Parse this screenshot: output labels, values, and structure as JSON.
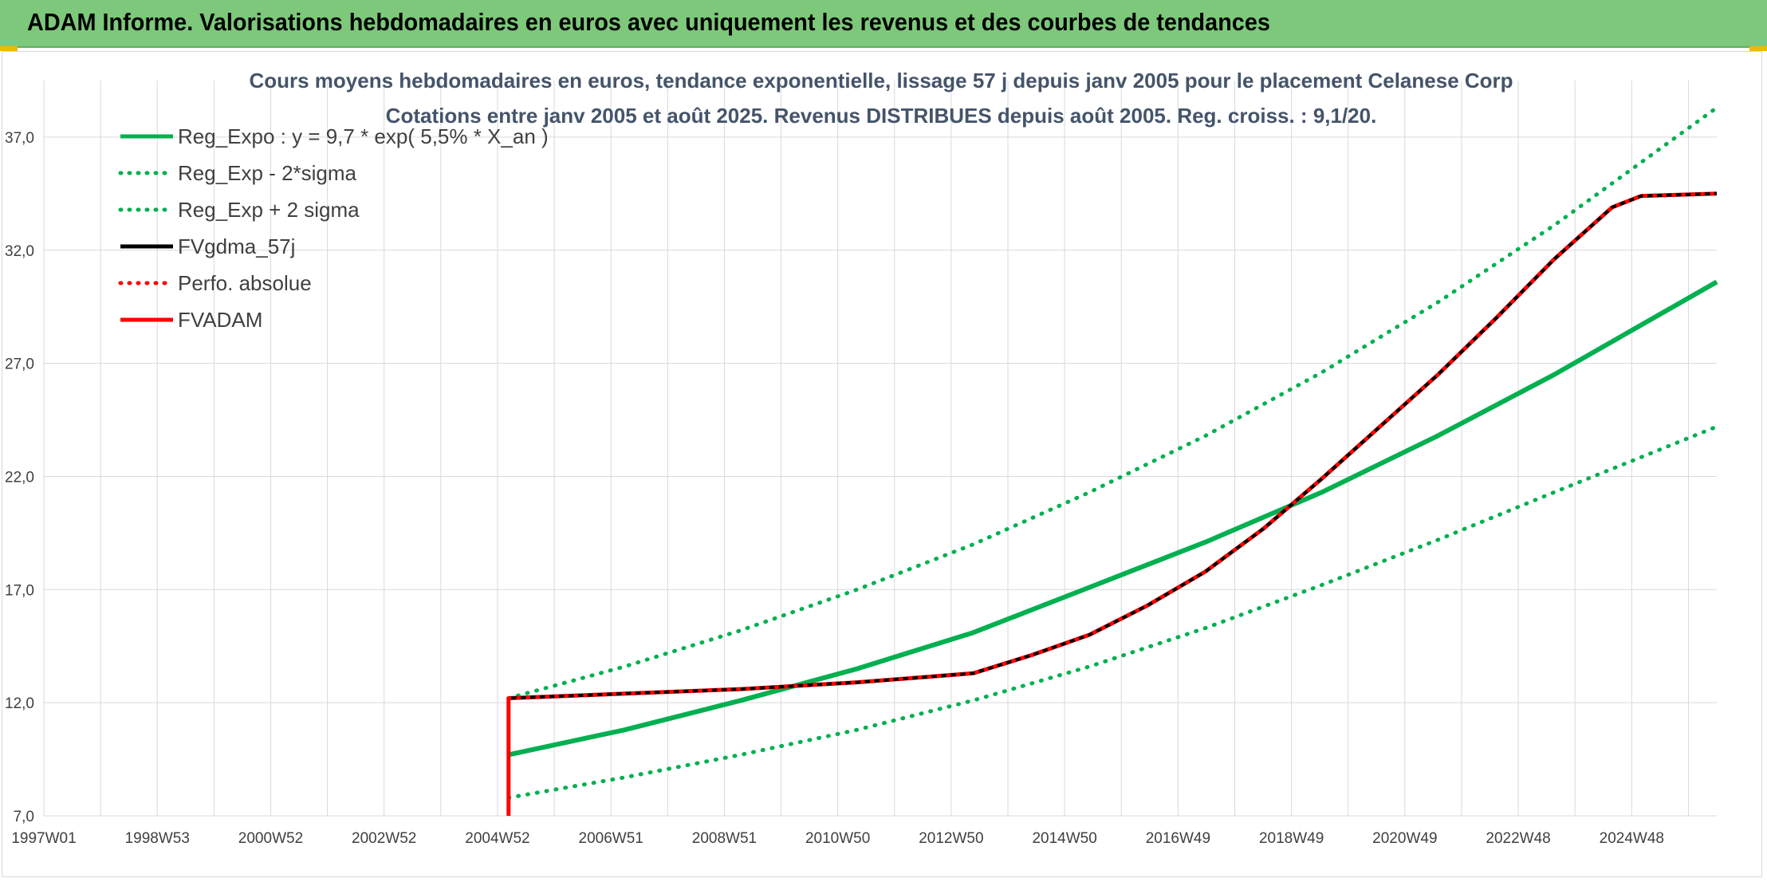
{
  "banner": {
    "title": "ADAM Informe. Valorisations hebdomadaires en euros avec uniquement les revenus et des courbes de tendances"
  },
  "colors": {
    "banner_bg": "#7dc87a",
    "green": "#00b050",
    "red": "#ff0000",
    "black": "#000000",
    "grid": "#d9d9d9",
    "title": "#44546a"
  },
  "chart_data": {
    "type": "line",
    "title": "Cours moyens hebdomadaires en euros, tendance exponentielle, lissage 57 j depuis janv 2005 pour le placement Celanese Corp",
    "subtitle": "Cotations entre janv 2005 et août 2025. Revenus DISTRIBUES depuis août 2005. Reg. croiss. : 9,1/20.",
    "xlabel": "",
    "ylabel": "",
    "x_ticks": [
      "1997W01",
      "1998W53",
      "2000W52",
      "2002W52",
      "2004W52",
      "2006W51",
      "2008W51",
      "2010W50",
      "2012W50",
      "2014W50",
      "2016W49",
      "2018W49",
      "2020W49",
      "2022W48",
      "2024W48"
    ],
    "xlim": [
      1997.0,
      2025.8
    ],
    "ylim": [
      7.0,
      39.5
    ],
    "y_ticks": [
      7.0,
      12.0,
      17.0,
      22.0,
      27.0,
      32.0,
      37.0
    ],
    "y_tick_labels": [
      "7,0",
      "12,0",
      "17,0",
      "22,0",
      "27,0",
      "32,0",
      "37,0"
    ],
    "grid": true,
    "legend_position": "top-left",
    "series": [
      {
        "name": "Reg_Expo : y = 9,7 * exp( 5,5% *  X_an )",
        "style": "solid",
        "color": "#00b050",
        "x": [
          2005.0,
          2007.0,
          2009.0,
          2011.0,
          2013.0,
          2015.0,
          2017.0,
          2019.0,
          2021.0,
          2023.0,
          2025.8
        ],
        "y": [
          9.7,
          10.8,
          12.1,
          13.5,
          15.1,
          17.1,
          19.1,
          21.3,
          23.8,
          26.5,
          30.6
        ]
      },
      {
        "name": "Reg_Exp - 2*sigma",
        "style": "dotted",
        "color": "#00b050",
        "x": [
          2005.0,
          2007.0,
          2009.0,
          2011.0,
          2013.0,
          2015.0,
          2017.0,
          2019.0,
          2021.0,
          2023.0,
          2025.8
        ],
        "y": [
          7.8,
          8.7,
          9.7,
          10.8,
          12.1,
          13.6,
          15.3,
          17.2,
          19.2,
          21.3,
          24.2
        ]
      },
      {
        "name": "Reg_Exp + 2 sigma",
        "style": "dotted",
        "color": "#00b050",
        "x": [
          2005.0,
          2007.0,
          2009.0,
          2011.0,
          2013.0,
          2015.0,
          2017.0,
          2019.0,
          2021.0,
          2023.0,
          2025.8
        ],
        "y": [
          12.2,
          13.6,
          15.2,
          17.0,
          19.0,
          21.3,
          23.8,
          26.6,
          29.7,
          33.1,
          38.3
        ]
      },
      {
        "name": "FVgdma_57j",
        "style": "solid",
        "color": "#000000",
        "x": [
          2005.0,
          2007.0,
          2009.0,
          2011.0,
          2013.0,
          2014.0,
          2015.0,
          2016.0,
          2017.0,
          2018.0,
          2019.0,
          2020.0,
          2021.0,
          2022.0,
          2023.0,
          2024.0,
          2024.5,
          2025.8
        ],
        "y": [
          12.2,
          12.4,
          12.6,
          12.9,
          13.3,
          14.1,
          15.0,
          16.3,
          17.8,
          19.7,
          21.9,
          24.2,
          26.5,
          29.0,
          31.6,
          33.9,
          34.4,
          34.5
        ]
      },
      {
        "name": "Perfo. absolue",
        "style": "dotted",
        "color": "#ff0000",
        "x": [
          2005.0,
          2007.0,
          2009.0,
          2011.0,
          2013.0,
          2014.0,
          2015.0,
          2016.0,
          2017.0,
          2018.0,
          2019.0,
          2020.0,
          2021.0,
          2022.0,
          2023.0,
          2024.0,
          2024.5,
          2025.8
        ],
        "y": [
          12.2,
          12.4,
          12.6,
          12.9,
          13.3,
          14.1,
          15.0,
          16.3,
          17.8,
          19.7,
          21.9,
          24.2,
          26.5,
          29.0,
          31.6,
          33.9,
          34.4,
          34.5
        ]
      },
      {
        "name": "FVADAM",
        "style": "solid",
        "color": "#ff0000",
        "x": [
          2005.0,
          2005.0,
          2007.0,
          2009.0,
          2011.0,
          2013.0,
          2014.0,
          2015.0,
          2016.0,
          2017.0,
          2018.0,
          2019.0,
          2020.0,
          2021.0,
          2022.0,
          2023.0,
          2024.0,
          2024.5,
          2025.8
        ],
        "y": [
          7.0,
          12.2,
          12.4,
          12.6,
          12.9,
          13.3,
          14.1,
          15.0,
          16.3,
          17.8,
          19.7,
          21.9,
          24.2,
          26.5,
          29.0,
          31.6,
          33.9,
          34.4,
          34.5
        ]
      }
    ]
  }
}
